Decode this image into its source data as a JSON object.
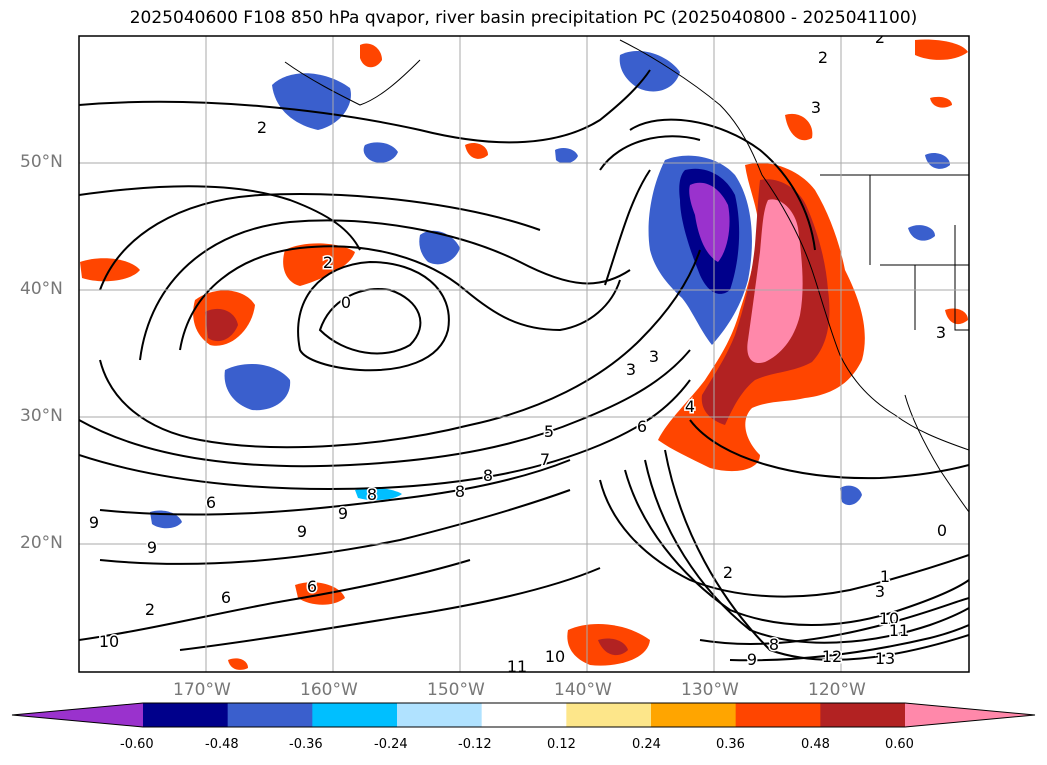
{
  "title": "2025040600 F108 850 hPa qvapor, river basin precipitation PC (2025040800 - 2025041100)",
  "lat_labels": [
    "50°N",
    "40°N",
    "30°N",
    "20°N"
  ],
  "lon_labels": [
    "170°W",
    "160°W",
    "150°W",
    "140°W",
    "130°W",
    "120°W"
  ],
  "contour_labels": [
    "2",
    "2",
    "2",
    "0",
    "2",
    "3",
    "3",
    "4",
    "5",
    "6",
    "6",
    "7",
    "8",
    "8",
    "8",
    "9",
    "9",
    "9",
    "9",
    "6",
    "6",
    "10",
    "10",
    "11",
    "2",
    "1",
    "3",
    "10",
    "11",
    "12",
    "13",
    "9",
    "8",
    "0",
    "2",
    "3",
    "3"
  ],
  "colorbar": {
    "ticks": [
      "-0.60",
      "-0.48",
      "-0.36",
      "-0.24",
      "-0.12",
      "0.12",
      "0.24",
      "0.36",
      "0.48",
      "0.60"
    ],
    "colors": [
      "#9a32cd",
      "#00008b",
      "#3a5fcd",
      "#00bfff",
      "#b0e2ff",
      "#ffffff",
      "#fde68a",
      "#ffa500",
      "#ff4500",
      "#b22222",
      "#ff88aa"
    ],
    "extend": "both"
  },
  "palette": {
    "neg_strong": "#9a32cd",
    "neg_dark": "#00008b",
    "neg_mid": "#3a5fcd",
    "neg_light": "#00bfff",
    "neg_pale": "#b0e2ff",
    "pos_pale": "#fde68a",
    "pos_light": "#ffa500",
    "pos_mid": "#ff4500",
    "pos_dark": "#b22222",
    "pos_strong": "#ff88aa"
  }
}
